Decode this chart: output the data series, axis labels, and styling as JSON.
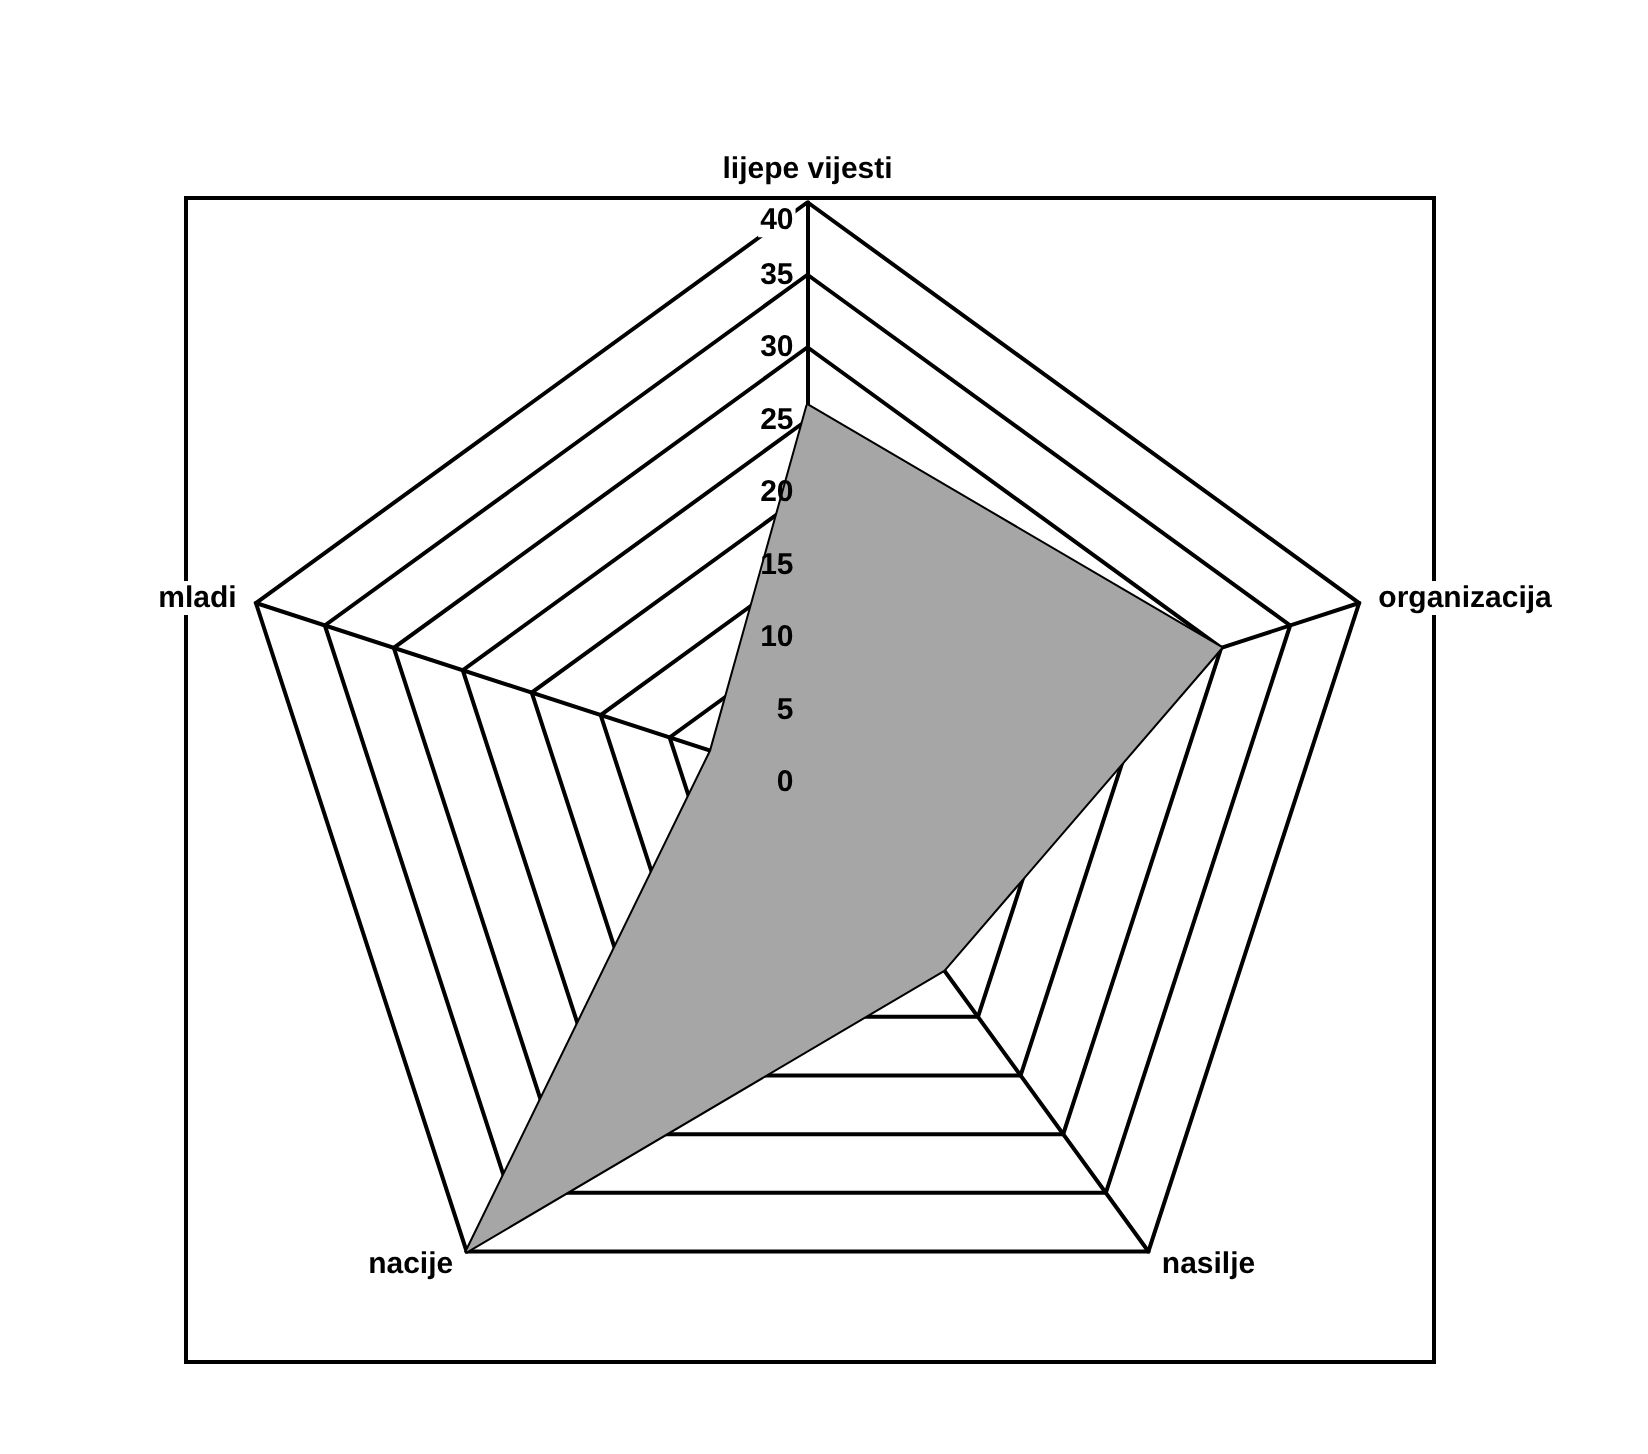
{
  "chart_data": {
    "type": "radar",
    "categories": [
      "lijepe vijesti",
      "organizacija",
      "nasilje",
      "nacije",
      "mladi"
    ],
    "series": [
      {
        "color": "#a6a6a6",
        "values": [
          26,
          30,
          16,
          40,
          7
        ]
      }
    ],
    "ylim": [
      0,
      40
    ],
    "yticks": [
      0,
      5,
      10,
      15,
      20,
      25,
      30,
      35,
      40
    ],
    "marker": "none"
  }
}
